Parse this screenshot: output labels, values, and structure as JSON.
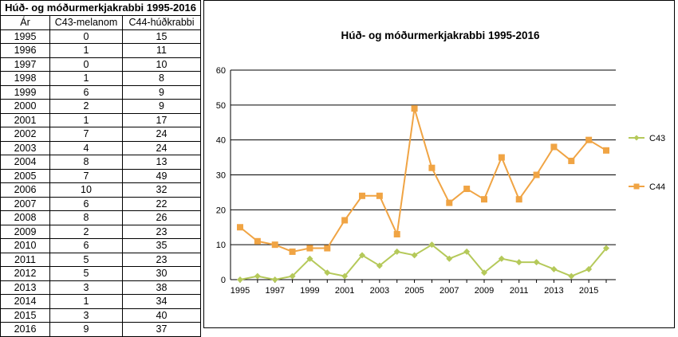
{
  "table": {
    "title": "Húð- og móðurmerkjakrabbi 1995-2016",
    "headers": [
      "Ár",
      "C43-melanom",
      "C44-húðkrabbi"
    ],
    "rows": [
      [
        "1995",
        "0",
        "15"
      ],
      [
        "1996",
        "1",
        "11"
      ],
      [
        "1997",
        "0",
        "10"
      ],
      [
        "1998",
        "1",
        "8"
      ],
      [
        "1999",
        "6",
        "9"
      ],
      [
        "2000",
        "2",
        "9"
      ],
      [
        "2001",
        "1",
        "17"
      ],
      [
        "2002",
        "7",
        "24"
      ],
      [
        "2003",
        "4",
        "24"
      ],
      [
        "2004",
        "8",
        "13"
      ],
      [
        "2005",
        "7",
        "49"
      ],
      [
        "2006",
        "10",
        "32"
      ],
      [
        "2007",
        "6",
        "22"
      ],
      [
        "2008",
        "8",
        "26"
      ],
      [
        "2009",
        "2",
        "23"
      ],
      [
        "2010",
        "6",
        "35"
      ],
      [
        "2011",
        "5",
        "23"
      ],
      [
        "2012",
        "5",
        "30"
      ],
      [
        "2013",
        "3",
        "38"
      ],
      [
        "2014",
        "1",
        "34"
      ],
      [
        "2015",
        "3",
        "40"
      ],
      [
        "2016",
        "9",
        "37"
      ]
    ]
  },
  "chart_data": {
    "type": "line",
    "title": "Húð- og móðurmerkjakrabbi 1995-2016",
    "xlabel": "",
    "ylabel": "",
    "x": [
      1995,
      1996,
      1997,
      1998,
      1999,
      2000,
      2001,
      2002,
      2003,
      2004,
      2005,
      2006,
      2007,
      2008,
      2009,
      2010,
      2011,
      2012,
      2013,
      2014,
      2015,
      2016
    ],
    "x_tick_labels": [
      "1995",
      "1997",
      "1999",
      "2001",
      "2003",
      "2005",
      "2007",
      "2009",
      "2011",
      "2013",
      "2015"
    ],
    "ylim": [
      0,
      60
    ],
    "y_ticks": [
      0,
      10,
      20,
      30,
      40,
      50,
      60
    ],
    "grid": "horizontal",
    "legend_position": "right",
    "series": [
      {
        "name": "C43",
        "color": "#b5c95a",
        "marker": "diamond",
        "values": [
          0,
          1,
          0,
          1,
          6,
          2,
          1,
          7,
          4,
          8,
          7,
          10,
          6,
          8,
          2,
          6,
          5,
          5,
          3,
          1,
          3,
          9
        ]
      },
      {
        "name": "C44",
        "color": "#f0a444",
        "marker": "square",
        "values": [
          15,
          11,
          10,
          8,
          9,
          9,
          17,
          24,
          24,
          13,
          49,
          32,
          22,
          26,
          23,
          35,
          23,
          30,
          38,
          34,
          40,
          37
        ]
      }
    ]
  }
}
